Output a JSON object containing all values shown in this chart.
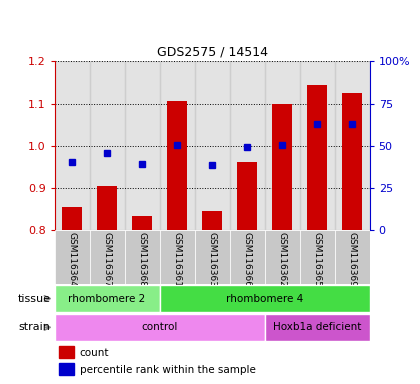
{
  "title": "GDS2575 / 14514",
  "samples": [
    "GSM116364",
    "GSM116367",
    "GSM116368",
    "GSM116361",
    "GSM116363",
    "GSM116366",
    "GSM116362",
    "GSM116365",
    "GSM116369"
  ],
  "bar_values": [
    0.855,
    0.905,
    0.833,
    1.107,
    0.845,
    0.963,
    1.1,
    1.145,
    1.125
  ],
  "dot_values": [
    0.963,
    0.983,
    0.958,
    1.003,
    0.955,
    0.998,
    1.002,
    1.053,
    1.053
  ],
  "ylim": [
    0.8,
    1.2
  ],
  "y2lim": [
    0,
    100
  ],
  "yticks": [
    0.8,
    0.9,
    1.0,
    1.1,
    1.2
  ],
  "y2ticks": [
    0,
    25,
    50,
    75,
    100
  ],
  "y2ticklabels": [
    "0",
    "25",
    "50",
    "75",
    "100%"
  ],
  "bar_color": "#cc0000",
  "dot_color": "#0000cc",
  "tissue_groups": [
    {
      "label": "rhombomere 2",
      "start": 0,
      "end": 3,
      "color": "#88ee88"
    },
    {
      "label": "rhombomere 4",
      "start": 3,
      "end": 9,
      "color": "#44dd44"
    }
  ],
  "strain_groups": [
    {
      "label": "control",
      "start": 0,
      "end": 6,
      "color": "#ee88ee"
    },
    {
      "label": "Hoxb1a deficient",
      "start": 6,
      "end": 9,
      "color": "#cc55cc"
    }
  ],
  "legend_items": [
    {
      "label": "count",
      "color": "#cc0000"
    },
    {
      "label": "percentile rank within the sample",
      "color": "#0000cc"
    }
  ],
  "bg_color": "#ffffff",
  "label_color_left": "#cc0000",
  "label_color_right": "#0000cc",
  "col_bg": "#c8c8c8"
}
